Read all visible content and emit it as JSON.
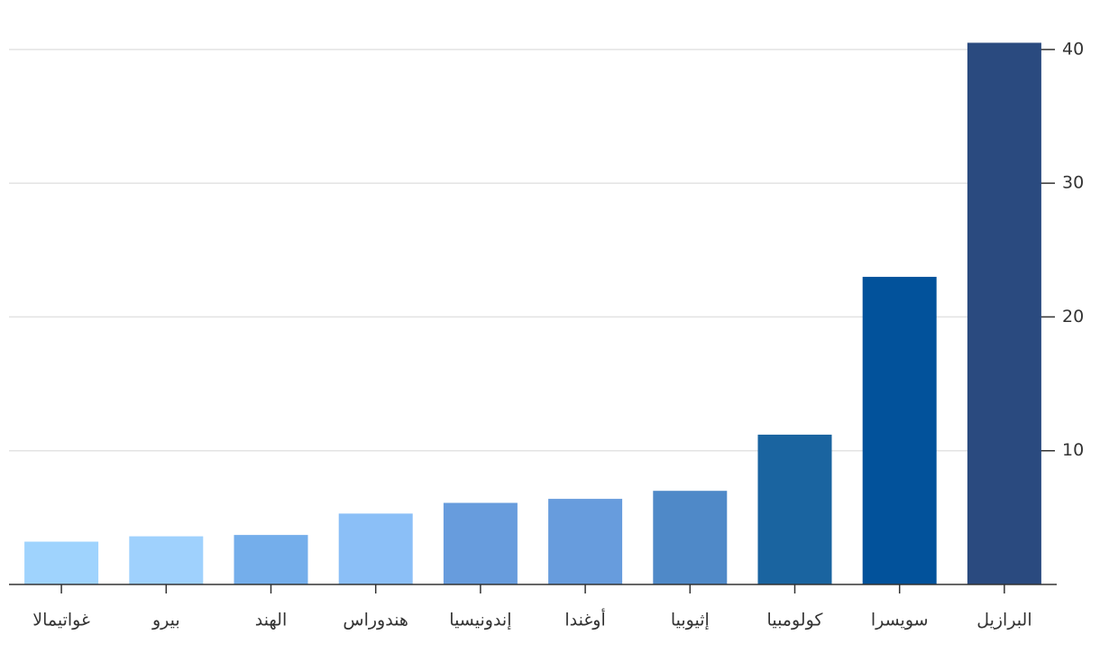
{
  "chart_data": {
    "type": "bar",
    "categories": [
      "غواتيمالا",
      "بيرو",
      "الهند",
      "هندوراس",
      "إندونيسيا",
      "أوغندا",
      "إثيوبيا",
      "كولومبيا",
      "سويسرا",
      "البرازيل"
    ],
    "values": [
      3.2,
      3.6,
      3.7,
      5.3,
      6.1,
      6.4,
      7.0,
      11.2,
      23.0,
      40.5
    ],
    "colors": [
      "#9fd3fd",
      "#9fd1fd",
      "#74aeeb",
      "#8bbff7",
      "#679cdd",
      "#679cdd",
      "#4f89c8",
      "#1a64a0",
      "#02529b",
      "#2a4a7f"
    ],
    "ylim": [
      0,
      41
    ],
    "yticks": [
      10,
      20,
      30,
      40
    ],
    "grid": true
  }
}
